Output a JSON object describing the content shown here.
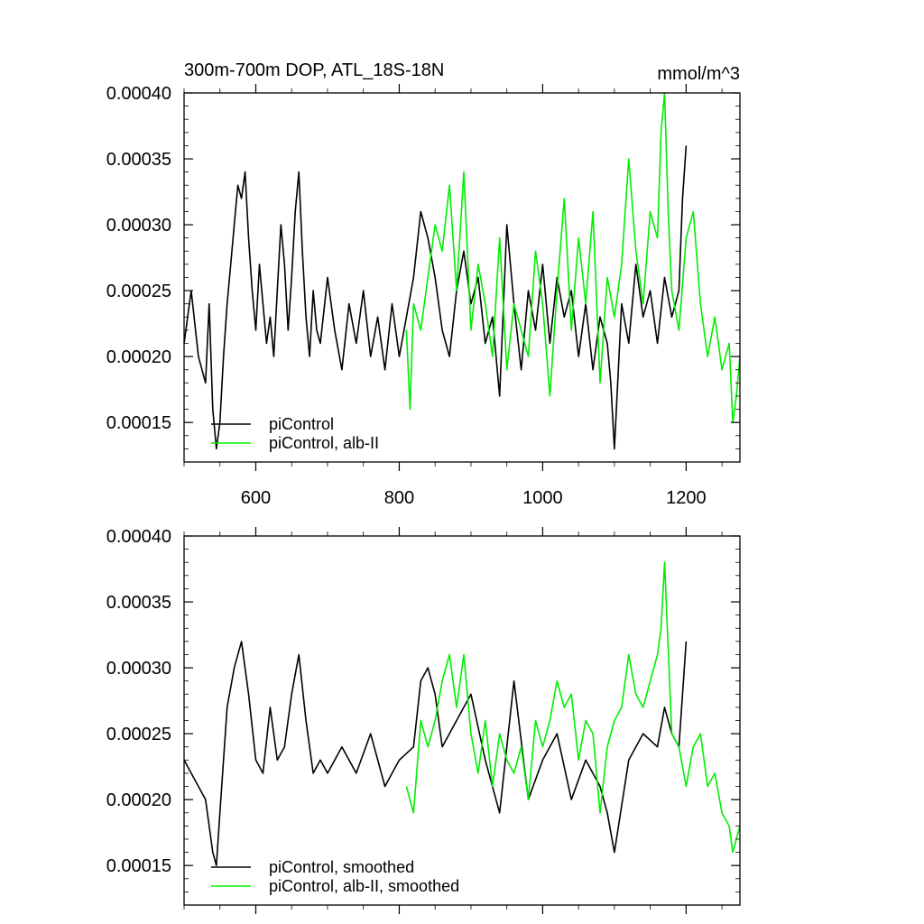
{
  "chart_data": [
    {
      "type": "line",
      "title": "300m-700m DOP, ATL_18S-18N",
      "units": "mmol/m^3",
      "xlabel": "",
      "ylabel": "",
      "xlim": [
        500,
        1275
      ],
      "ylim": [
        0.00012,
        0.0004
      ],
      "xticks": [
        600,
        800,
        1000,
        1200
      ],
      "xtick_labels": [
        "600",
        "800",
        "1000",
        "1200"
      ],
      "yticks": [
        0.00015,
        0.0002,
        0.00025,
        0.0003,
        0.00035,
        0.0004
      ],
      "ytick_labels": [
        "0.00015",
        "0.00020",
        "0.00025",
        "0.00030",
        "0.00035",
        "0.00040"
      ],
      "grid": false,
      "legend": "bottom-left",
      "series": [
        {
          "name": "piControl",
          "color": "#000000",
          "x": [
            500,
            510,
            520,
            530,
            535,
            540,
            545,
            550,
            555,
            560,
            565,
            570,
            575,
            580,
            585,
            590,
            595,
            600,
            605,
            610,
            615,
            620,
            625,
            630,
            635,
            640,
            645,
            650,
            655,
            660,
            665,
            670,
            675,
            680,
            685,
            690,
            700,
            710,
            720,
            730,
            740,
            750,
            760,
            770,
            780,
            790,
            800,
            810,
            820,
            830,
            840,
            850,
            860,
            870,
            880,
            890,
            900,
            910,
            920,
            930,
            940,
            950,
            960,
            970,
            980,
            990,
            1000,
            1010,
            1020,
            1030,
            1040,
            1050,
            1060,
            1070,
            1080,
            1090,
            1095,
            1100,
            1110,
            1120,
            1130,
            1140,
            1150,
            1160,
            1170,
            1180,
            1190,
            1195,
            1200
          ],
          "values": [
            0.00021,
            0.00025,
            0.0002,
            0.00018,
            0.00024,
            0.00016,
            0.00013,
            0.00015,
            0.0002,
            0.00024,
            0.00027,
            0.0003,
            0.00033,
            0.00032,
            0.00034,
            0.00029,
            0.00025,
            0.00022,
            0.00027,
            0.00024,
            0.00021,
            0.00023,
            0.0002,
            0.00025,
            0.0003,
            0.00027,
            0.00022,
            0.00026,
            0.00031,
            0.00034,
            0.00028,
            0.00023,
            0.0002,
            0.00025,
            0.00022,
            0.00021,
            0.00026,
            0.00022,
            0.00019,
            0.00024,
            0.00021,
            0.00025,
            0.0002,
            0.00023,
            0.00019,
            0.00024,
            0.0002,
            0.00023,
            0.00026,
            0.00031,
            0.00029,
            0.00026,
            0.00022,
            0.0002,
            0.00025,
            0.00028,
            0.00024,
            0.00026,
            0.00021,
            0.00023,
            0.00017,
            0.0003,
            0.00024,
            0.00019,
            0.00025,
            0.00022,
            0.00027,
            0.00021,
            0.00026,
            0.00023,
            0.00025,
            0.0002,
            0.00024,
            0.00019,
            0.00023,
            0.00021,
            0.00018,
            0.00013,
            0.00024,
            0.00021,
            0.00027,
            0.00023,
            0.00025,
            0.00021,
            0.00026,
            0.00023,
            0.00025,
            0.00032,
            0.00036
          ]
        },
        {
          "name": "piControl, alb-II",
          "color": "#00ee00",
          "x": [
            810,
            815,
            820,
            830,
            840,
            850,
            860,
            870,
            880,
            890,
            900,
            910,
            920,
            930,
            940,
            950,
            960,
            970,
            980,
            990,
            1000,
            1010,
            1020,
            1030,
            1040,
            1050,
            1060,
            1070,
            1080,
            1090,
            1100,
            1110,
            1120,
            1130,
            1140,
            1150,
            1160,
            1165,
            1170,
            1175,
            1180,
            1190,
            1200,
            1210,
            1220,
            1230,
            1240,
            1250,
            1260,
            1265,
            1270,
            1275
          ],
          "values": [
            0.00022,
            0.00016,
            0.00024,
            0.00022,
            0.00026,
            0.0003,
            0.00028,
            0.00033,
            0.00025,
            0.00034,
            0.00022,
            0.00027,
            0.00024,
            0.0002,
            0.00029,
            0.00019,
            0.00024,
            0.00022,
            0.0002,
            0.00028,
            0.00024,
            0.00017,
            0.00025,
            0.00032,
            0.00022,
            0.00029,
            0.00024,
            0.00031,
            0.00018,
            0.00026,
            0.00023,
            0.00027,
            0.00035,
            0.00028,
            0.00024,
            0.00031,
            0.00029,
            0.00037,
            0.0004,
            0.00031,
            0.00025,
            0.00022,
            0.00029,
            0.00031,
            0.00024,
            0.0002,
            0.00023,
            0.00019,
            0.00021,
            0.00015,
            0.00017,
            0.0002
          ]
        }
      ]
    },
    {
      "type": "line",
      "title": "",
      "xlabel": "",
      "ylabel": "",
      "xlim": [
        500,
        1275
      ],
      "ylim": [
        0.00012,
        0.0004
      ],
      "xticks": [
        600,
        800,
        1000,
        1200
      ],
      "yticks": [
        0.00015,
        0.0002,
        0.00025,
        0.0003,
        0.00035,
        0.0004
      ],
      "ytick_labels": [
        "0.00015",
        "0.00020",
        "0.00025",
        "0.00030",
        "0.00035",
        "0.00040"
      ],
      "grid": false,
      "legend": "bottom-left",
      "series": [
        {
          "name": "piControl, smoothed",
          "color": "#000000",
          "x": [
            500,
            510,
            520,
            530,
            540,
            545,
            550,
            560,
            570,
            580,
            590,
            600,
            610,
            620,
            630,
            640,
            650,
            660,
            670,
            680,
            690,
            700,
            720,
            740,
            760,
            780,
            800,
            820,
            830,
            840,
            850,
            860,
            880,
            900,
            920,
            940,
            960,
            980,
            1000,
            1020,
            1040,
            1060,
            1080,
            1090,
            1100,
            1120,
            1140,
            1160,
            1170,
            1180,
            1190,
            1200
          ],
          "values": [
            0.00023,
            0.00022,
            0.00021,
            0.0002,
            0.00016,
            0.00015,
            0.00019,
            0.00027,
            0.0003,
            0.00032,
            0.00028,
            0.00023,
            0.00022,
            0.00027,
            0.00023,
            0.00024,
            0.00028,
            0.00031,
            0.00026,
            0.00022,
            0.00023,
            0.00022,
            0.00024,
            0.00022,
            0.00025,
            0.00021,
            0.00023,
            0.00024,
            0.00029,
            0.0003,
            0.00028,
            0.00024,
            0.00026,
            0.00028,
            0.00023,
            0.00019,
            0.00029,
            0.0002,
            0.00023,
            0.00025,
            0.0002,
            0.00023,
            0.00021,
            0.00019,
            0.00016,
            0.00023,
            0.00025,
            0.00024,
            0.00027,
            0.00025,
            0.00024,
            0.00032
          ]
        },
        {
          "name": "piControl, alb-II, smoothed",
          "color": "#00ee00",
          "x": [
            810,
            820,
            830,
            840,
            850,
            860,
            870,
            880,
            890,
            900,
            910,
            920,
            930,
            940,
            950,
            960,
            970,
            980,
            990,
            1000,
            1010,
            1020,
            1030,
            1040,
            1050,
            1060,
            1070,
            1080,
            1090,
            1100,
            1110,
            1120,
            1130,
            1140,
            1150,
            1160,
            1165,
            1170,
            1180,
            1190,
            1200,
            1210,
            1220,
            1230,
            1240,
            1250,
            1260,
            1265,
            1270,
            1275
          ],
          "values": [
            0.00021,
            0.00019,
            0.00026,
            0.00024,
            0.00026,
            0.00029,
            0.00031,
            0.00027,
            0.00031,
            0.00025,
            0.00022,
            0.00026,
            0.00021,
            0.00025,
            0.00023,
            0.00022,
            0.00024,
            0.0002,
            0.00026,
            0.00024,
            0.00026,
            0.00029,
            0.00027,
            0.00028,
            0.00023,
            0.00026,
            0.00025,
            0.00019,
            0.00024,
            0.00026,
            0.00027,
            0.00031,
            0.00028,
            0.00027,
            0.00029,
            0.00031,
            0.00033,
            0.00038,
            0.00025,
            0.00024,
            0.00021,
            0.00024,
            0.00025,
            0.00021,
            0.00022,
            0.00019,
            0.00018,
            0.00016,
            0.00017,
            0.00018
          ]
        }
      ]
    }
  ]
}
